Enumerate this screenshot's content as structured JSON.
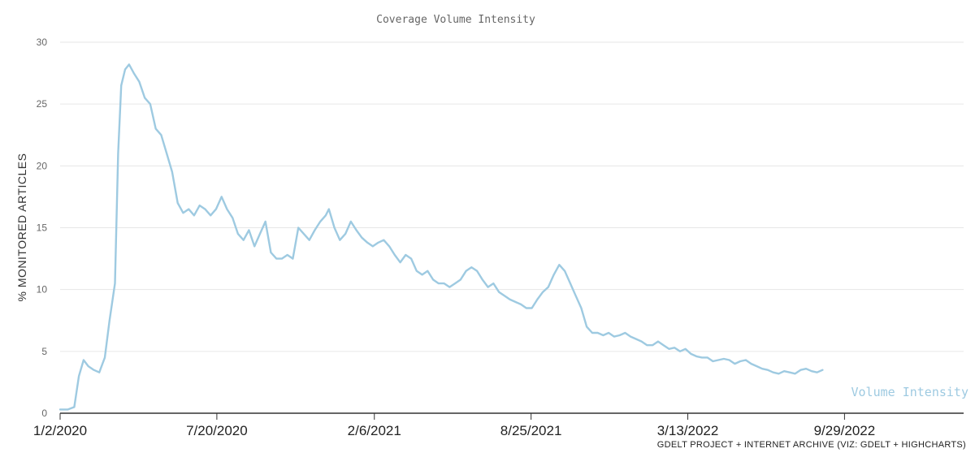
{
  "chart_data": {
    "type": "line",
    "title": "Coverage Volume Intensity",
    "ylabel": "% MONITORED ARTICLES",
    "xlabel": "",
    "ylim": [
      0,
      30
    ],
    "yticks": [
      0,
      5,
      10,
      15,
      20,
      25,
      30
    ],
    "grid": true,
    "x_ticks": [
      "1/2/2020",
      "7/20/2020",
      "2/6/2021",
      "8/25/2021",
      "3/13/2022",
      "9/29/2022"
    ],
    "x_range": [
      "2020-01-02",
      "2023-02-28"
    ],
    "credit": "GDELT PROJECT + INTERNET ARCHIVE (VIZ: GDELT + HIGHCHARTS)",
    "colors": {
      "line": "#9ecae1",
      "grid": "#e6e6e6",
      "axis": "#333333"
    },
    "series": [
      {
        "name": "Volume Intensity",
        "points": [
          [
            "2020-01-02",
            0.3
          ],
          [
            "2020-01-12",
            0.3
          ],
          [
            "2020-01-20",
            0.5
          ],
          [
            "2020-01-26",
            3.0
          ],
          [
            "2020-02-01",
            4.3
          ],
          [
            "2020-02-07",
            3.8
          ],
          [
            "2020-02-14",
            3.5
          ],
          [
            "2020-02-21",
            3.3
          ],
          [
            "2020-02-28",
            4.5
          ],
          [
            "2020-03-05",
            7.5
          ],
          [
            "2020-03-12",
            10.5
          ],
          [
            "2020-03-16",
            21.0
          ],
          [
            "2020-03-20",
            26.5
          ],
          [
            "2020-03-25",
            27.8
          ],
          [
            "2020-03-30",
            28.2
          ],
          [
            "2020-04-05",
            27.5
          ],
          [
            "2020-04-12",
            26.8
          ],
          [
            "2020-04-19",
            25.5
          ],
          [
            "2020-04-26",
            25.0
          ],
          [
            "2020-05-03",
            23.0
          ],
          [
            "2020-05-10",
            22.5
          ],
          [
            "2020-05-17",
            21.0
          ],
          [
            "2020-05-24",
            19.5
          ],
          [
            "2020-05-31",
            17.0
          ],
          [
            "2020-06-07",
            16.2
          ],
          [
            "2020-06-14",
            16.5
          ],
          [
            "2020-06-21",
            16.0
          ],
          [
            "2020-06-28",
            16.8
          ],
          [
            "2020-07-05",
            16.5
          ],
          [
            "2020-07-12",
            16.0
          ],
          [
            "2020-07-19",
            16.5
          ],
          [
            "2020-07-26",
            17.5
          ],
          [
            "2020-08-02",
            16.5
          ],
          [
            "2020-08-09",
            15.8
          ],
          [
            "2020-08-16",
            14.5
          ],
          [
            "2020-08-23",
            14.0
          ],
          [
            "2020-08-30",
            14.8
          ],
          [
            "2020-09-06",
            13.5
          ],
          [
            "2020-09-13",
            14.5
          ],
          [
            "2020-09-20",
            15.5
          ],
          [
            "2020-09-27",
            13.0
          ],
          [
            "2020-10-04",
            12.5
          ],
          [
            "2020-10-11",
            12.5
          ],
          [
            "2020-10-18",
            12.8
          ],
          [
            "2020-10-25",
            12.5
          ],
          [
            "2020-11-01",
            15.0
          ],
          [
            "2020-11-08",
            14.5
          ],
          [
            "2020-11-15",
            14.0
          ],
          [
            "2020-11-22",
            14.8
          ],
          [
            "2020-11-29",
            15.5
          ],
          [
            "2020-12-06",
            16.0
          ],
          [
            "2020-12-10",
            16.5
          ],
          [
            "2020-12-17",
            15.0
          ],
          [
            "2020-12-24",
            14.0
          ],
          [
            "2020-12-31",
            14.5
          ],
          [
            "2021-01-07",
            15.5
          ],
          [
            "2021-01-14",
            14.8
          ],
          [
            "2021-01-21",
            14.2
          ],
          [
            "2021-01-28",
            13.8
          ],
          [
            "2021-02-04",
            13.5
          ],
          [
            "2021-02-11",
            13.8
          ],
          [
            "2021-02-18",
            14.0
          ],
          [
            "2021-02-25",
            13.5
          ],
          [
            "2021-03-04",
            12.8
          ],
          [
            "2021-03-11",
            12.2
          ],
          [
            "2021-03-18",
            12.8
          ],
          [
            "2021-03-25",
            12.5
          ],
          [
            "2021-04-01",
            11.5
          ],
          [
            "2021-04-08",
            11.2
          ],
          [
            "2021-04-15",
            11.5
          ],
          [
            "2021-04-22",
            10.8
          ],
          [
            "2021-04-29",
            10.5
          ],
          [
            "2021-05-06",
            10.5
          ],
          [
            "2021-05-13",
            10.2
          ],
          [
            "2021-05-20",
            10.5
          ],
          [
            "2021-05-27",
            10.8
          ],
          [
            "2021-06-03",
            11.5
          ],
          [
            "2021-06-10",
            11.8
          ],
          [
            "2021-06-17",
            11.5
          ],
          [
            "2021-06-24",
            10.8
          ],
          [
            "2021-07-01",
            10.2
          ],
          [
            "2021-07-08",
            10.5
          ],
          [
            "2021-07-15",
            9.8
          ],
          [
            "2021-07-22",
            9.5
          ],
          [
            "2021-07-29",
            9.2
          ],
          [
            "2021-08-05",
            9.0
          ],
          [
            "2021-08-12",
            8.8
          ],
          [
            "2021-08-19",
            8.5
          ],
          [
            "2021-08-26",
            8.5
          ],
          [
            "2021-09-02",
            9.2
          ],
          [
            "2021-09-09",
            9.8
          ],
          [
            "2021-09-16",
            10.2
          ],
          [
            "2021-09-23",
            11.2
          ],
          [
            "2021-09-30",
            12.0
          ],
          [
            "2021-10-07",
            11.5
          ],
          [
            "2021-10-14",
            10.5
          ],
          [
            "2021-10-21",
            9.5
          ],
          [
            "2021-10-28",
            8.5
          ],
          [
            "2021-11-04",
            7.0
          ],
          [
            "2021-11-11",
            6.5
          ],
          [
            "2021-11-18",
            6.5
          ],
          [
            "2021-11-25",
            6.3
          ],
          [
            "2021-12-02",
            6.5
          ],
          [
            "2021-12-09",
            6.2
          ],
          [
            "2021-12-16",
            6.3
          ],
          [
            "2021-12-23",
            6.5
          ],
          [
            "2021-12-30",
            6.2
          ],
          [
            "2022-01-06",
            6.0
          ],
          [
            "2022-01-13",
            5.8
          ],
          [
            "2022-01-20",
            5.5
          ],
          [
            "2022-01-27",
            5.5
          ],
          [
            "2022-02-03",
            5.8
          ],
          [
            "2022-02-10",
            5.5
          ],
          [
            "2022-02-17",
            5.2
          ],
          [
            "2022-02-24",
            5.3
          ],
          [
            "2022-03-03",
            5.0
          ],
          [
            "2022-03-10",
            5.2
          ],
          [
            "2022-03-17",
            4.8
          ],
          [
            "2022-03-24",
            4.6
          ],
          [
            "2022-03-31",
            4.5
          ],
          [
            "2022-04-07",
            4.5
          ],
          [
            "2022-04-14",
            4.2
          ],
          [
            "2022-04-21",
            4.3
          ],
          [
            "2022-04-28",
            4.4
          ],
          [
            "2022-05-05",
            4.3
          ],
          [
            "2022-05-12",
            4.0
          ],
          [
            "2022-05-19",
            4.2
          ],
          [
            "2022-05-26",
            4.3
          ],
          [
            "2022-06-02",
            4.0
          ],
          [
            "2022-06-09",
            3.8
          ],
          [
            "2022-06-16",
            3.6
          ],
          [
            "2022-06-23",
            3.5
          ],
          [
            "2022-06-30",
            3.3
          ],
          [
            "2022-07-07",
            3.2
          ],
          [
            "2022-07-14",
            3.4
          ],
          [
            "2022-07-21",
            3.3
          ],
          [
            "2022-07-28",
            3.2
          ],
          [
            "2022-08-04",
            3.5
          ],
          [
            "2022-08-11",
            3.6
          ],
          [
            "2022-08-18",
            3.4
          ],
          [
            "2022-08-25",
            3.3
          ],
          [
            "2022-09-01",
            3.5
          ]
        ]
      }
    ]
  }
}
